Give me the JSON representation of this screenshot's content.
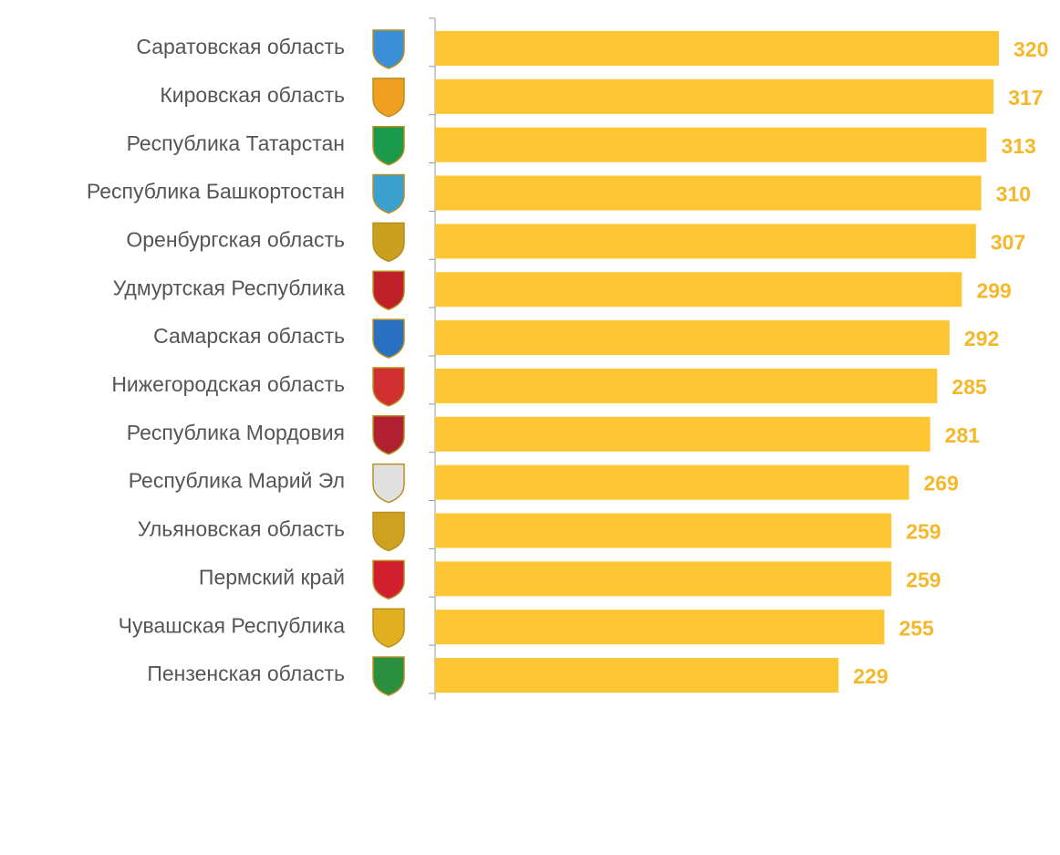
{
  "chart_data": {
    "type": "barh",
    "categories": [
      "Саратовская область",
      "Кировская область",
      "Республика Татарстан",
      "Республика Башкортостан",
      "Оренбургская область",
      "Удмуртская Республика",
      "Самарская область",
      "Нижегородская область",
      "Республика Мордовия",
      "Республика Марий Эл",
      "Ульяновская область",
      "Пермский край",
      "Чувашская Республика",
      "Пензенская область"
    ],
    "values": [
      320,
      317,
      313,
      310,
      307,
      299,
      292,
      285,
      281,
      269,
      259,
      259,
      255,
      229
    ],
    "color": "#fdc632",
    "xlim": [
      0,
      320
    ]
  }
}
